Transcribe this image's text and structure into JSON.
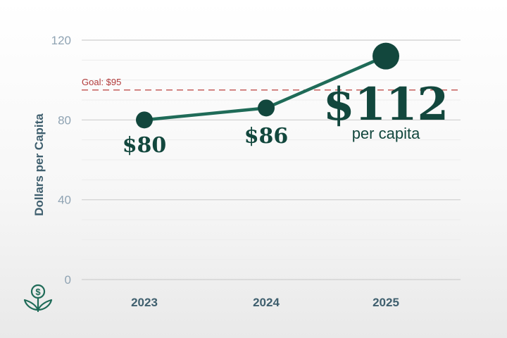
{
  "chart_data": {
    "type": "line",
    "categories": [
      "2023",
      "2024",
      "2025"
    ],
    "values": [
      80,
      86,
      112
    ],
    "series": [
      {
        "name": "Dollars per Capita",
        "values": [
          80,
          86,
          112
        ]
      }
    ],
    "data_labels": [
      "$80",
      "$86",
      "$112"
    ],
    "highlight_sublabel": "per capita",
    "ylabel": "Dollars per Capita",
    "xlabel": "",
    "ylim": [
      0,
      120
    ],
    "y_ticks": [
      0,
      40,
      80,
      120
    ],
    "goal": {
      "value": 95,
      "label": "Goal: $95"
    },
    "grid": true
  },
  "colors": {
    "line": "#1f6b58",
    "marker": "#12473d",
    "goal": "#c0504d",
    "grid": "#d9d9d9",
    "axis_text": "#8fa3b3",
    "label_text": "#3f5f6e",
    "icon": "#1f6b58"
  },
  "icon": {
    "name": "money-plant-icon"
  }
}
